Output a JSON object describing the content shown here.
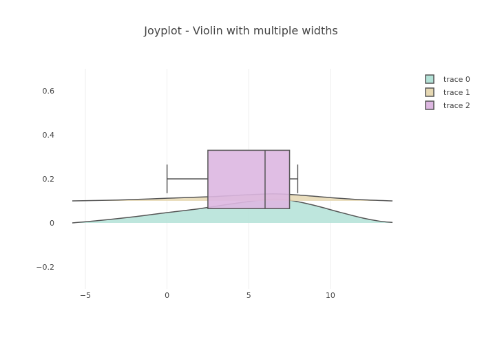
{
  "chart_data": {
    "type": "violin",
    "title": "Joyplot - Violin with multiple widths",
    "xlabel": "",
    "ylabel": "",
    "xlim": [
      -5.8,
      13.8
    ],
    "ylim": [
      -0.3,
      0.7
    ],
    "x_ticks": [
      -5,
      0,
      5,
      10
    ],
    "x_tick_labels": [
      "−5",
      "0",
      "5",
      "10"
    ],
    "y_ticks": [
      -0.2,
      0,
      0.2,
      0.4,
      0.6
    ],
    "y_tick_labels": [
      "−0.2",
      "0",
      "0.2",
      "0.4",
      "0.6"
    ],
    "grid": "vertical",
    "legend_position": "top-right",
    "series": [
      {
        "name": "trace 0",
        "type": "violin",
        "baseline": 0,
        "fill": "#b3e2d7",
        "points": [
          [
            -5.8,
            0.0
          ],
          [
            -4.0,
            0.012
          ],
          [
            -2.0,
            0.028
          ],
          [
            0.0,
            0.047
          ],
          [
            2.0,
            0.065
          ],
          [
            4.0,
            0.087
          ],
          [
            5.5,
            0.102
          ],
          [
            6.5,
            0.108
          ],
          [
            7.5,
            0.103
          ],
          [
            9.0,
            0.08
          ],
          [
            10.5,
            0.05
          ],
          [
            12.0,
            0.022
          ],
          [
            13.0,
            0.008
          ],
          [
            13.8,
            0.002
          ]
        ]
      },
      {
        "name": "trace 1",
        "type": "violin",
        "baseline": 0.1,
        "fill": "#e6d8b3",
        "points": [
          [
            -5.8,
            0.1
          ],
          [
            -3.0,
            0.104
          ],
          [
            0.0,
            0.112
          ],
          [
            3.0,
            0.12
          ],
          [
            5.0,
            0.128
          ],
          [
            6.5,
            0.132
          ],
          [
            8.0,
            0.127
          ],
          [
            10.0,
            0.115
          ],
          [
            12.0,
            0.105
          ],
          [
            13.8,
            0.1
          ]
        ]
      },
      {
        "name": "trace 2",
        "type": "box",
        "fill": "#ddb7e1",
        "whisker_low": 0,
        "q1": 2.5,
        "median": 6,
        "q3": 7.5,
        "whisker_high": 8,
        "box_y_range": [
          0.065,
          0.33
        ],
        "whisker_y": 0.2,
        "cap_half_height": 0.065
      }
    ]
  }
}
